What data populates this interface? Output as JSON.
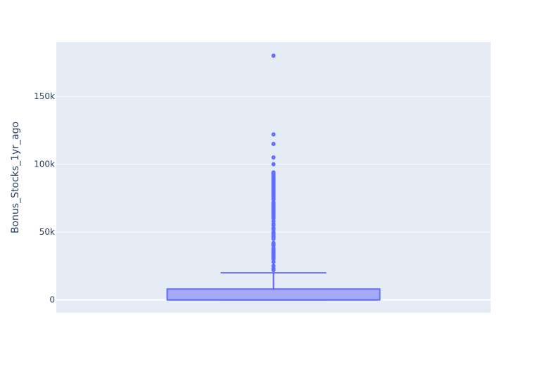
{
  "chart_data": {
    "type": "box",
    "title": "",
    "xlabel": "",
    "ylabel": "Bonus_Stocks_1yr_ago",
    "ylim": [
      -9500,
      190000
    ],
    "y_ticks": [
      0,
      50000,
      100000,
      150000
    ],
    "y_tick_labels": [
      "0",
      "50k",
      "100k",
      "150k"
    ],
    "grid": true,
    "legend": "none",
    "colors": {
      "plot_bg": "#e5ecf6",
      "box_line": "#636efa",
      "box_fill": "#a5aaf8",
      "grid": "#ffffff"
    },
    "box": {
      "min": 0,
      "q1": 0,
      "median": 0,
      "q3": 8000,
      "whisker_high": 20000,
      "outliers": [
        22000,
        23000,
        25000,
        28000,
        30000,
        31000,
        32000,
        33000,
        34000,
        35000,
        36000,
        37000,
        38000,
        40000,
        41000,
        42000,
        45000,
        46000,
        47000,
        48000,
        49000,
        50000,
        52000,
        53000,
        55000,
        56000,
        58000,
        60000,
        61000,
        62000,
        63000,
        64000,
        65000,
        66000,
        67000,
        68000,
        69000,
        70000,
        71000,
        72000,
        74000,
        75000,
        76000,
        77000,
        78000,
        79000,
        80000,
        81000,
        82000,
        83000,
        84000,
        85000,
        86000,
        87000,
        88000,
        89000,
        90000,
        91000,
        92000,
        93000,
        94000,
        100000,
        105000,
        115000,
        122000,
        180000
      ]
    }
  }
}
